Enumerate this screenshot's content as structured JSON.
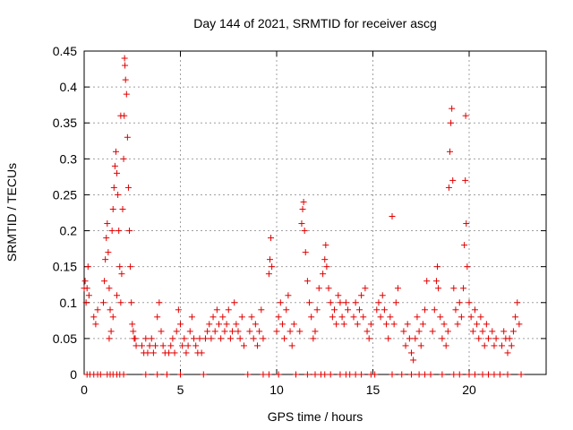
{
  "chart_data": {
    "type": "scatter",
    "title": "Day 144 of 2021, SRMTID for receiver ascg",
    "xlabel": "GPS time / hours",
    "ylabel": "SRMTID / TECUs",
    "xlim": [
      0,
      24
    ],
    "ylim": [
      0,
      0.45
    ],
    "xticks": [
      0,
      5,
      10,
      15,
      20
    ],
    "xtick_labels": [
      "0",
      "5",
      "10",
      "15",
      "20"
    ],
    "yticks": [
      0,
      0.05,
      0.1,
      0.15,
      0.2,
      0.25,
      0.3,
      0.35,
      0.4,
      0.45
    ],
    "ytick_labels": [
      "0",
      "0.05",
      "0.1",
      "0.15",
      "0.2",
      "0.25",
      "0.3",
      "0.35",
      "0.4",
      "0.45"
    ],
    "grid": true,
    "marker": "+",
    "color": "#e00000",
    "series": [
      {
        "name": "SRMTID",
        "points": [
          [
            0.0,
            0.12
          ],
          [
            0.05,
            0.13
          ],
          [
            0.1,
            0.1
          ],
          [
            0.15,
            0.12
          ],
          [
            0.2,
            0.15
          ],
          [
            0.25,
            0.11
          ],
          [
            0.5,
            0.08
          ],
          [
            0.6,
            0.07
          ],
          [
            0.7,
            0.09
          ],
          [
            1.0,
            0.1
          ],
          [
            1.05,
            0.13
          ],
          [
            1.1,
            0.16
          ],
          [
            1.15,
            0.19
          ],
          [
            1.2,
            0.21
          ],
          [
            1.25,
            0.17
          ],
          [
            1.3,
            0.12
          ],
          [
            1.35,
            0.09
          ],
          [
            1.4,
            0.06
          ],
          [
            1.45,
            0.2
          ],
          [
            1.5,
            0.23
          ],
          [
            1.55,
            0.26
          ],
          [
            1.6,
            0.29
          ],
          [
            1.65,
            0.31
          ],
          [
            1.7,
            0.28
          ],
          [
            1.75,
            0.25
          ],
          [
            1.8,
            0.2
          ],
          [
            1.85,
            0.15
          ],
          [
            1.9,
            0.1
          ],
          [
            1.3,
            0.05
          ],
          [
            1.5,
            0.08
          ],
          [
            1.7,
            0.11
          ],
          [
            1.9,
            0.36
          ],
          [
            1.95,
            0.14
          ],
          [
            2.0,
            0.23
          ],
          [
            2.05,
            0.3
          ],
          [
            2.08,
            0.36
          ],
          [
            2.1,
            0.44
          ],
          [
            2.12,
            0.43
          ],
          [
            2.15,
            0.41
          ],
          [
            2.2,
            0.39
          ],
          [
            2.25,
            0.33
          ],
          [
            2.3,
            0.26
          ],
          [
            2.35,
            0.2
          ],
          [
            2.4,
            0.15
          ],
          [
            2.45,
            0.1
          ],
          [
            2.5,
            0.07
          ],
          [
            2.55,
            0.06
          ],
          [
            2.6,
            0.05
          ],
          [
            2.65,
            0.05
          ],
          [
            2.7,
            0.04
          ],
          [
            3.0,
            0.04
          ],
          [
            3.1,
            0.03
          ],
          [
            3.2,
            0.05
          ],
          [
            3.3,
            0.03
          ],
          [
            3.4,
            0.04
          ],
          [
            3.5,
            0.05
          ],
          [
            3.6,
            0.03
          ],
          [
            3.7,
            0.04
          ],
          [
            3.8,
            0.08
          ],
          [
            3.9,
            0.1
          ],
          [
            4.0,
            0.06
          ],
          [
            4.1,
            0.04
          ],
          [
            4.2,
            0.03
          ],
          [
            4.4,
            0.03
          ],
          [
            4.5,
            0.04
          ],
          [
            4.6,
            0.05
          ],
          [
            4.7,
            0.03
          ],
          [
            4.8,
            0.06
          ],
          [
            4.9,
            0.09
          ],
          [
            5.0,
            0.07
          ],
          [
            5.1,
            0.04
          ],
          [
            5.2,
            0.05
          ],
          [
            5.3,
            0.03
          ],
          [
            5.4,
            0.04
          ],
          [
            5.5,
            0.06
          ],
          [
            5.6,
            0.08
          ],
          [
            5.7,
            0.05
          ],
          [
            5.8,
            0.04
          ],
          [
            5.9,
            0.03
          ],
          [
            6.0,
            0.05
          ],
          [
            6.1,
            0.03
          ],
          [
            6.3,
            0.05
          ],
          [
            6.4,
            0.06
          ],
          [
            6.5,
            0.07
          ],
          [
            6.6,
            0.05
          ],
          [
            6.7,
            0.08
          ],
          [
            6.8,
            0.06
          ],
          [
            6.9,
            0.09
          ],
          [
            7.0,
            0.07
          ],
          [
            7.1,
            0.05
          ],
          [
            7.2,
            0.08
          ],
          [
            7.3,
            0.06
          ],
          [
            7.4,
            0.07
          ],
          [
            7.5,
            0.09
          ],
          [
            7.6,
            0.05
          ],
          [
            7.7,
            0.06
          ],
          [
            7.8,
            0.1
          ],
          [
            7.9,
            0.07
          ],
          [
            8.0,
            0.06
          ],
          [
            8.1,
            0.05
          ],
          [
            8.2,
            0.08
          ],
          [
            8.3,
            0.04
          ],
          [
            8.6,
            0.06
          ],
          [
            8.7,
            0.08
          ],
          [
            8.8,
            0.05
          ],
          [
            8.9,
            0.07
          ],
          [
            9.0,
            0.04
          ],
          [
            9.1,
            0.06
          ],
          [
            9.2,
            0.09
          ],
          [
            9.3,
            0.05
          ],
          [
            9.6,
            0.14
          ],
          [
            9.65,
            0.16
          ],
          [
            9.7,
            0.19
          ],
          [
            9.75,
            0.15
          ],
          [
            10.0,
            0.06
          ],
          [
            10.1,
            0.08
          ],
          [
            10.2,
            0.1
          ],
          [
            10.3,
            0.07
          ],
          [
            10.4,
            0.05
          ],
          [
            10.5,
            0.09
          ],
          [
            10.6,
            0.11
          ],
          [
            10.7,
            0.06
          ],
          [
            10.8,
            0.04
          ],
          [
            10.9,
            0.07
          ],
          [
            11.2,
            0.06
          ],
          [
            11.3,
            0.21
          ],
          [
            11.35,
            0.23
          ],
          [
            11.4,
            0.24
          ],
          [
            11.45,
            0.2
          ],
          [
            11.5,
            0.17
          ],
          [
            11.6,
            0.13
          ],
          [
            11.7,
            0.1
          ],
          [
            11.8,
            0.08
          ],
          [
            11.9,
            0.05
          ],
          [
            12.0,
            0.06
          ],
          [
            12.1,
            0.09
          ],
          [
            12.2,
            0.12
          ],
          [
            12.4,
            0.14
          ],
          [
            12.5,
            0.16
          ],
          [
            12.55,
            0.18
          ],
          [
            12.6,
            0.15
          ],
          [
            12.7,
            0.12
          ],
          [
            12.8,
            0.1
          ],
          [
            12.9,
            0.08
          ],
          [
            13.0,
            0.09
          ],
          [
            13.1,
            0.07
          ],
          [
            13.2,
            0.11
          ],
          [
            13.3,
            0.1
          ],
          [
            13.4,
            0.08
          ],
          [
            13.5,
            0.07
          ],
          [
            13.6,
            0.1
          ],
          [
            13.7,
            0.09
          ],
          [
            14.0,
            0.08
          ],
          [
            14.1,
            0.1
          ],
          [
            14.2,
            0.07
          ],
          [
            14.3,
            0.09
          ],
          [
            14.4,
            0.11
          ],
          [
            14.5,
            0.08
          ],
          [
            14.6,
            0.12
          ],
          [
            14.7,
            0.06
          ],
          [
            14.8,
            0.05
          ],
          [
            14.9,
            0.07
          ],
          [
            15.2,
            0.09
          ],
          [
            15.3,
            0.1
          ],
          [
            15.4,
            0.08
          ],
          [
            15.5,
            0.11
          ],
          [
            15.6,
            0.09
          ],
          [
            15.7,
            0.07
          ],
          [
            15.8,
            0.05
          ],
          [
            15.9,
            0.08
          ],
          [
            16.0,
            0.22
          ],
          [
            16.1,
            0.07
          ],
          [
            16.2,
            0.1
          ],
          [
            16.3,
            0.12
          ],
          [
            16.6,
            0.06
          ],
          [
            16.7,
            0.04
          ],
          [
            16.8,
            0.07
          ],
          [
            16.9,
            0.05
          ],
          [
            17.0,
            0.03
          ],
          [
            17.1,
            0.02
          ],
          [
            17.2,
            0.05
          ],
          [
            17.3,
            0.08
          ],
          [
            17.4,
            0.06
          ],
          [
            17.5,
            0.04
          ],
          [
            17.6,
            0.07
          ],
          [
            17.7,
            0.09
          ],
          [
            17.8,
            0.13
          ],
          [
            18.1,
            0.06
          ],
          [
            18.2,
            0.09
          ],
          [
            18.3,
            0.13
          ],
          [
            18.35,
            0.15
          ],
          [
            18.4,
            0.12
          ],
          [
            18.5,
            0.08
          ],
          [
            18.6,
            0.05
          ],
          [
            18.7,
            0.07
          ],
          [
            18.8,
            0.04
          ],
          [
            18.9,
            0.06
          ],
          [
            18.95,
            0.26
          ],
          [
            19.0,
            0.31
          ],
          [
            19.05,
            0.35
          ],
          [
            19.1,
            0.37
          ],
          [
            19.15,
            0.27
          ],
          [
            19.2,
            0.12
          ],
          [
            19.3,
            0.09
          ],
          [
            19.4,
            0.07
          ],
          [
            19.5,
            0.1
          ],
          [
            19.6,
            0.08
          ],
          [
            19.7,
            0.12
          ],
          [
            19.75,
            0.18
          ],
          [
            19.8,
            0.27
          ],
          [
            19.82,
            0.36
          ],
          [
            19.85,
            0.21
          ],
          [
            19.9,
            0.15
          ],
          [
            20.0,
            0.1
          ],
          [
            20.1,
            0.08
          ],
          [
            20.2,
            0.06
          ],
          [
            20.3,
            0.09
          ],
          [
            20.4,
            0.07
          ],
          [
            20.5,
            0.05
          ],
          [
            20.6,
            0.08
          ],
          [
            20.7,
            0.06
          ],
          [
            20.8,
            0.04
          ],
          [
            20.9,
            0.07
          ],
          [
            21.0,
            0.05
          ],
          [
            21.2,
            0.06
          ],
          [
            21.3,
            0.04
          ],
          [
            21.4,
            0.05
          ],
          [
            21.7,
            0.04
          ],
          [
            21.8,
            0.06
          ],
          [
            21.9,
            0.05
          ],
          [
            22.0,
            0.03
          ],
          [
            22.1,
            0.05
          ],
          [
            22.2,
            0.04
          ],
          [
            22.3,
            0.06
          ],
          [
            22.4,
            0.08
          ],
          [
            22.5,
            0.1
          ],
          [
            22.6,
            0.07
          ],
          [
            0.15,
            0.0
          ],
          [
            0.3,
            0.0
          ],
          [
            0.5,
            0.0
          ],
          [
            0.7,
            0.0
          ],
          [
            0.85,
            0.0
          ],
          [
            1.2,
            0.0
          ],
          [
            1.35,
            0.0
          ],
          [
            1.5,
            0.0
          ],
          [
            1.7,
            0.0
          ],
          [
            1.85,
            0.0
          ],
          [
            2.05,
            0.0
          ],
          [
            3.2,
            0.0
          ],
          [
            3.8,
            0.0
          ],
          [
            4.3,
            0.0
          ],
          [
            5.0,
            0.0
          ],
          [
            6.2,
            0.0
          ],
          [
            8.5,
            0.0
          ],
          [
            9.3,
            0.0
          ],
          [
            9.6,
            0.0
          ],
          [
            10.1,
            0.0
          ],
          [
            11.0,
            0.0
          ],
          [
            11.6,
            0.0
          ],
          [
            12.0,
            0.0
          ],
          [
            12.3,
            0.0
          ],
          [
            12.5,
            0.0
          ],
          [
            12.8,
            0.0
          ],
          [
            13.3,
            0.0
          ],
          [
            13.6,
            0.0
          ],
          [
            13.8,
            0.0
          ],
          [
            14.1,
            0.0
          ],
          [
            14.4,
            0.0
          ],
          [
            14.9,
            0.0
          ],
          [
            15.1,
            0.0
          ],
          [
            16.0,
            0.0
          ],
          [
            16.5,
            0.0
          ],
          [
            17.0,
            0.0
          ],
          [
            17.4,
            0.0
          ],
          [
            17.7,
            0.0
          ],
          [
            18.0,
            0.0
          ],
          [
            18.6,
            0.0
          ],
          [
            19.2,
            0.0
          ],
          [
            19.5,
            0.0
          ],
          [
            20.0,
            0.0
          ],
          [
            20.3,
            0.0
          ],
          [
            20.7,
            0.0
          ],
          [
            21.0,
            0.0
          ],
          [
            21.3,
            0.0
          ],
          [
            21.6,
            0.0
          ],
          [
            22.0,
            0.0
          ],
          [
            22.7,
            0.0
          ]
        ]
      }
    ]
  }
}
